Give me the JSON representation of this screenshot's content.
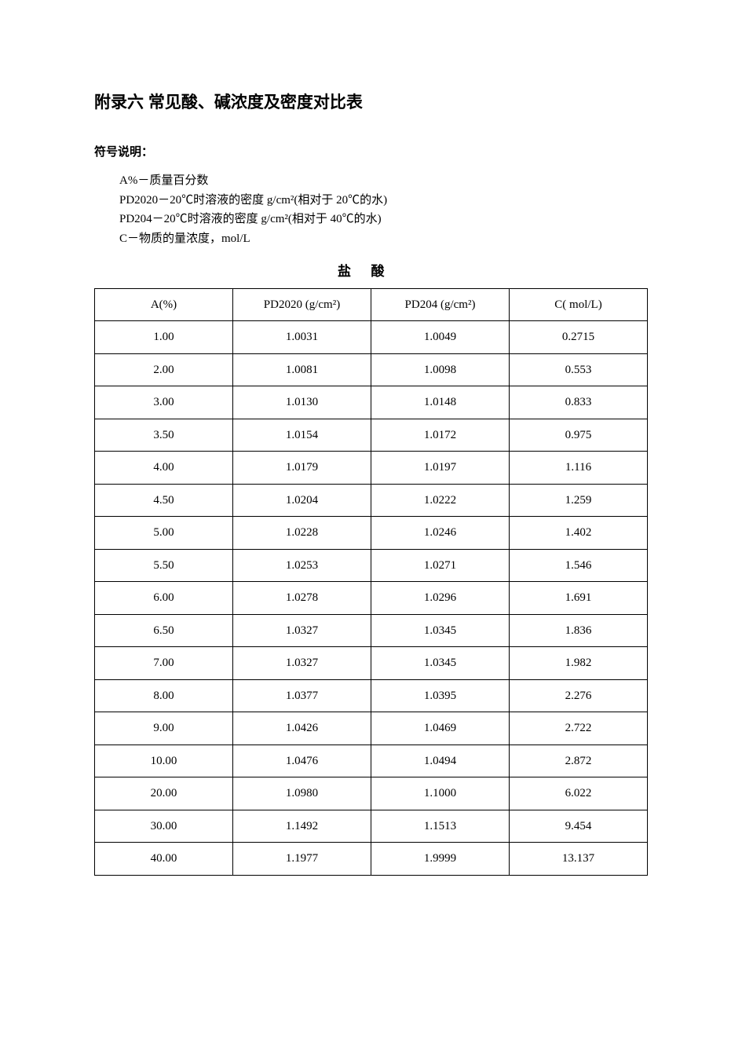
{
  "title": "附录六  常见酸、碱浓度及密度对比表",
  "section_label": "符号说明：",
  "symbols": [
    "A%－质量百分数",
    "ΡD2020－20℃时溶液的密度 g/cm²(相对于 20℃的水)",
    "ΡD204－20℃时溶液的密度 g/cm²(相对于 40℃的水)",
    "C－物质的量浓度，mol/L"
  ],
  "table": {
    "caption": "盐酸",
    "columns": [
      "A(%)",
      "ΡD2020 (g/cm²)",
      "ΡD204 (g/cm²)",
      "C( mol/L)"
    ],
    "col_widths": [
      "25%",
      "25%",
      "25%",
      "25%"
    ],
    "border_color": "#000000",
    "background_color": "#ffffff",
    "cell_fontsize": 15,
    "rows": [
      [
        "1.00",
        "1.0031",
        "1.0049",
        "0.2715"
      ],
      [
        "2.00",
        "1.0081",
        "1.0098",
        "0.553"
      ],
      [
        "3.00",
        "1.0130",
        "1.0148",
        "0.833"
      ],
      [
        "3.50",
        "1.0154",
        "1.0172",
        "0.975"
      ],
      [
        "4.00",
        "1.0179",
        "1.0197",
        "1.116"
      ],
      [
        "4.50",
        "1.0204",
        "1.0222",
        "1.259"
      ],
      [
        "5.00",
        "1.0228",
        "1.0246",
        "1.402"
      ],
      [
        "5.50",
        "1.0253",
        "1.0271",
        "1.546"
      ],
      [
        "6.00",
        "1.0278",
        "1.0296",
        "1.691"
      ],
      [
        "6.50",
        "1.0327",
        "1.0345",
        "1.836"
      ],
      [
        "7.00",
        "1.0327",
        "1.0345",
        "1.982"
      ],
      [
        "8.00",
        "1.0377",
        "1.0395",
        "2.276"
      ],
      [
        "9.00",
        "1.0426",
        "1.0469",
        "2.722"
      ],
      [
        "10.00",
        "1.0476",
        "1.0494",
        "2.872"
      ],
      [
        "20.00",
        "1.0980",
        "1.1000",
        "6.022"
      ],
      [
        "30.00",
        "1.1492",
        "1.1513",
        "9.454"
      ],
      [
        "40.00",
        "1.1977",
        "1.9999",
        "13.137"
      ]
    ]
  }
}
